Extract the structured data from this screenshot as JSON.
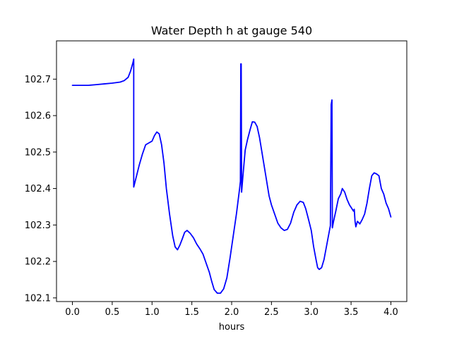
{
  "chart_data": {
    "type": "line",
    "title": "Water Depth h at gauge 540",
    "xlabel": "hours",
    "ylabel": "",
    "xlim": [
      -0.2,
      4.2
    ],
    "ylim": [
      102.09,
      102.805
    ],
    "xticks": [
      0.0,
      0.5,
      1.0,
      1.5,
      2.0,
      2.5,
      3.0,
      3.5,
      4.0
    ],
    "xtick_labels": [
      "0.0",
      "0.5",
      "1.0",
      "1.5",
      "2.0",
      "2.5",
      "3.0",
      "3.5",
      "4.0"
    ],
    "yticks": [
      102.1,
      102.2,
      102.3,
      102.4,
      102.5,
      102.6,
      102.7
    ],
    "ytick_labels": [
      "102.1",
      "102.2",
      "102.3",
      "102.4",
      "102.5",
      "102.6",
      "102.7"
    ],
    "grid": false,
    "legend": "none",
    "series": [
      {
        "color": "#0000ff",
        "points": [
          [
            0.0,
            102.683
          ],
          [
            0.1,
            102.683
          ],
          [
            0.2,
            102.683
          ],
          [
            0.3,
            102.685
          ],
          [
            0.4,
            102.687
          ],
          [
            0.5,
            102.689
          ],
          [
            0.6,
            102.692
          ],
          [
            0.65,
            102.696
          ],
          [
            0.7,
            102.705
          ],
          [
            0.73,
            102.722
          ],
          [
            0.76,
            102.745
          ],
          [
            0.77,
            102.755
          ],
          [
            0.77,
            102.404
          ],
          [
            0.8,
            102.43
          ],
          [
            0.84,
            102.465
          ],
          [
            0.88,
            102.495
          ],
          [
            0.92,
            102.52
          ],
          [
            0.96,
            102.525
          ],
          [
            1.0,
            102.53
          ],
          [
            1.03,
            102.545
          ],
          [
            1.06,
            102.555
          ],
          [
            1.09,
            102.55
          ],
          [
            1.12,
            102.52
          ],
          [
            1.15,
            102.47
          ],
          [
            1.18,
            102.4
          ],
          [
            1.22,
            102.33
          ],
          [
            1.26,
            102.27
          ],
          [
            1.29,
            102.24
          ],
          [
            1.32,
            102.232
          ],
          [
            1.35,
            102.245
          ],
          [
            1.38,
            102.262
          ],
          [
            1.41,
            102.28
          ],
          [
            1.44,
            102.285
          ],
          [
            1.48,
            102.277
          ],
          [
            1.52,
            102.265
          ],
          [
            1.56,
            102.248
          ],
          [
            1.6,
            102.235
          ],
          [
            1.64,
            102.22
          ],
          [
            1.68,
            102.195
          ],
          [
            1.72,
            102.17
          ],
          [
            1.75,
            102.145
          ],
          [
            1.78,
            102.123
          ],
          [
            1.82,
            102.113
          ],
          [
            1.86,
            102.113
          ],
          [
            1.9,
            102.125
          ],
          [
            1.94,
            102.155
          ],
          [
            1.98,
            102.21
          ],
          [
            2.02,
            102.27
          ],
          [
            2.06,
            102.33
          ],
          [
            2.1,
            102.4
          ],
          [
            2.11,
            102.42
          ],
          [
            2.115,
            102.742
          ],
          [
            2.12,
            102.742
          ],
          [
            2.125,
            102.39
          ],
          [
            2.14,
            102.43
          ],
          [
            2.17,
            102.505
          ],
          [
            2.2,
            102.535
          ],
          [
            2.23,
            102.56
          ],
          [
            2.26,
            102.583
          ],
          [
            2.29,
            102.582
          ],
          [
            2.32,
            102.57
          ],
          [
            2.35,
            102.54
          ],
          [
            2.38,
            102.5
          ],
          [
            2.41,
            102.46
          ],
          [
            2.44,
            102.42
          ],
          [
            2.47,
            102.38
          ],
          [
            2.5,
            102.355
          ],
          [
            2.54,
            102.33
          ],
          [
            2.58,
            102.305
          ],
          [
            2.62,
            102.292
          ],
          [
            2.66,
            102.285
          ],
          [
            2.7,
            102.288
          ],
          [
            2.74,
            102.305
          ],
          [
            2.78,
            102.335
          ],
          [
            2.82,
            102.355
          ],
          [
            2.86,
            102.365
          ],
          [
            2.9,
            102.362
          ],
          [
            2.93,
            102.345
          ],
          [
            2.96,
            102.32
          ],
          [
            3.0,
            102.285
          ],
          [
            3.03,
            102.24
          ],
          [
            3.06,
            102.205
          ],
          [
            3.08,
            102.183
          ],
          [
            3.1,
            102.178
          ],
          [
            3.13,
            102.183
          ],
          [
            3.16,
            102.205
          ],
          [
            3.19,
            102.24
          ],
          [
            3.22,
            102.275
          ],
          [
            3.24,
            102.298
          ],
          [
            3.25,
            102.63
          ],
          [
            3.26,
            102.643
          ],
          [
            3.265,
            102.292
          ],
          [
            3.28,
            102.31
          ],
          [
            3.31,
            102.34
          ],
          [
            3.34,
            102.372
          ],
          [
            3.37,
            102.385
          ],
          [
            3.39,
            102.4
          ],
          [
            3.42,
            102.39
          ],
          [
            3.45,
            102.37
          ],
          [
            3.48,
            102.355
          ],
          [
            3.51,
            102.345
          ],
          [
            3.53,
            102.338
          ],
          [
            3.54,
            102.343
          ],
          [
            3.55,
            102.31
          ],
          [
            3.56,
            102.295
          ],
          [
            3.58,
            102.31
          ],
          [
            3.61,
            102.303
          ],
          [
            3.64,
            102.315
          ],
          [
            3.67,
            102.33
          ],
          [
            3.7,
            102.36
          ],
          [
            3.73,
            102.4
          ],
          [
            3.76,
            102.435
          ],
          [
            3.79,
            102.443
          ],
          [
            3.82,
            102.44
          ],
          [
            3.85,
            102.435
          ],
          [
            3.88,
            102.4
          ],
          [
            3.91,
            102.385
          ],
          [
            3.94,
            102.36
          ],
          [
            3.97,
            102.345
          ],
          [
            4.0,
            102.322
          ]
        ]
      }
    ]
  }
}
